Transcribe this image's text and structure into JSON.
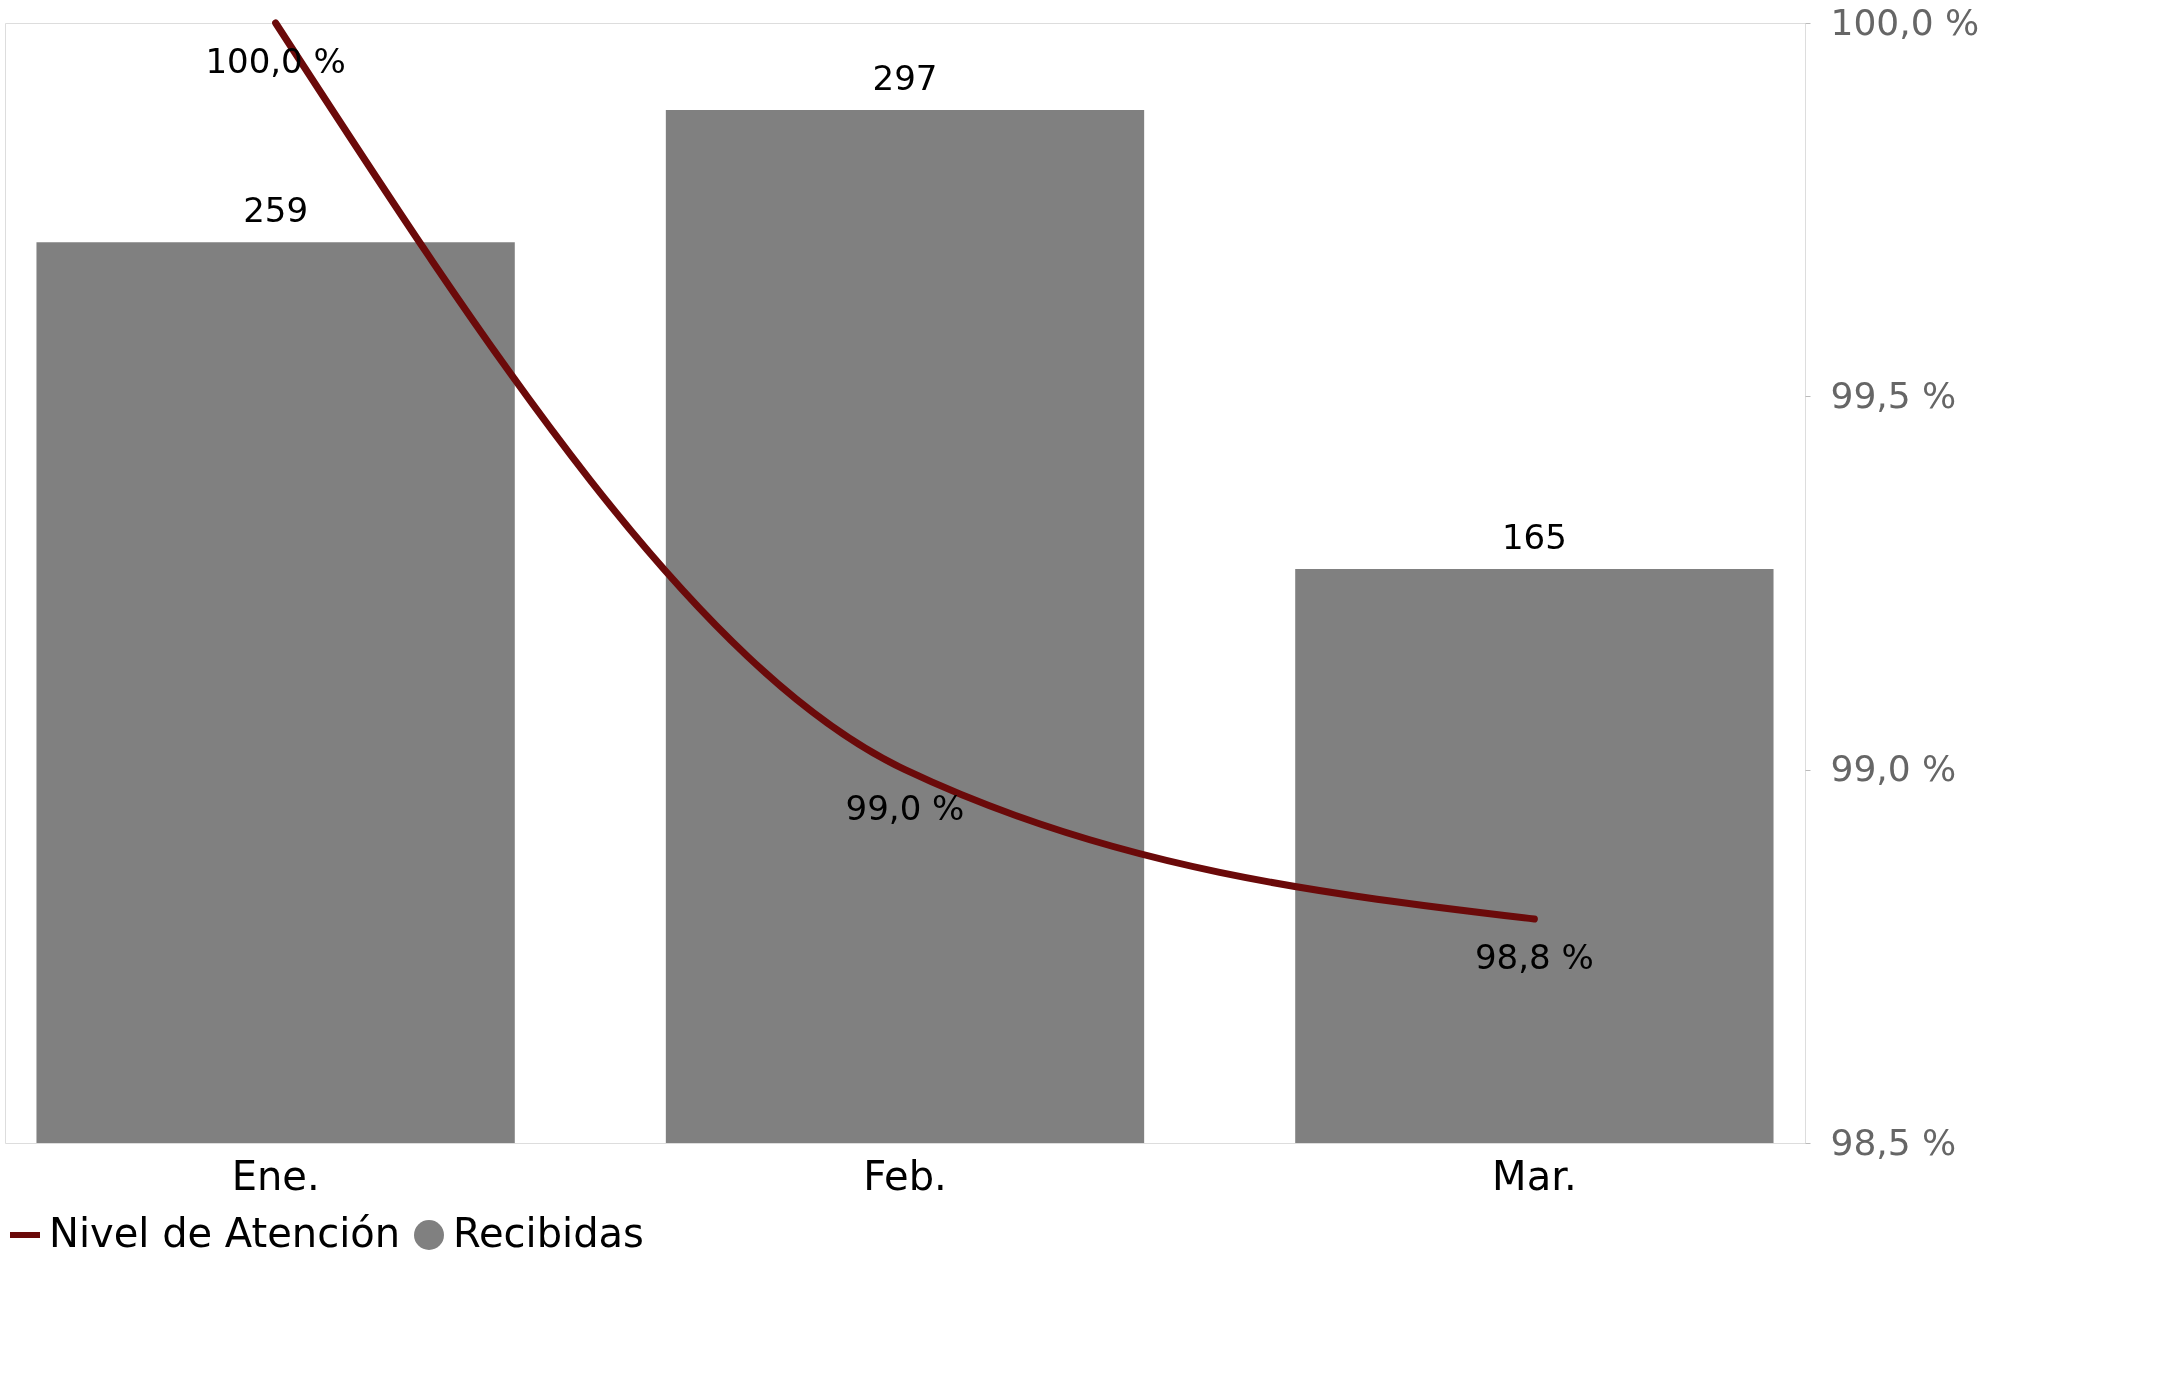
{
  "chart_data": {
    "type": "bar",
    "categories": [
      "Ene.",
      "Feb.",
      "Mar."
    ],
    "series": [
      {
        "name": "Recibidas",
        "color": "#808080",
        "values": [
          259,
          297,
          165
        ],
        "value_labels": [
          "259",
          "297",
          "165"
        ]
      },
      {
        "name": "Nivel de Atención",
        "type": "line",
        "axis": "y2",
        "color": "#6b0a0a",
        "values": [
          100.0,
          99.0,
          98.8
        ],
        "value_labels": [
          "100,0 %",
          "99,0 %",
          "98,8 %"
        ]
      }
    ],
    "ylim": [
      0,
      322
    ],
    "y2lim": [
      98.5,
      100.0
    ],
    "y2ticks": [
      {
        "value": 98.5,
        "label": "98,5 %"
      },
      {
        "value": 99.0,
        "label": "99,0 %"
      },
      {
        "value": 99.5,
        "label": "99,5 %"
      },
      {
        "value": 100.0,
        "label": "100,0 %"
      }
    ],
    "grid": false,
    "legend": "bottom"
  }
}
